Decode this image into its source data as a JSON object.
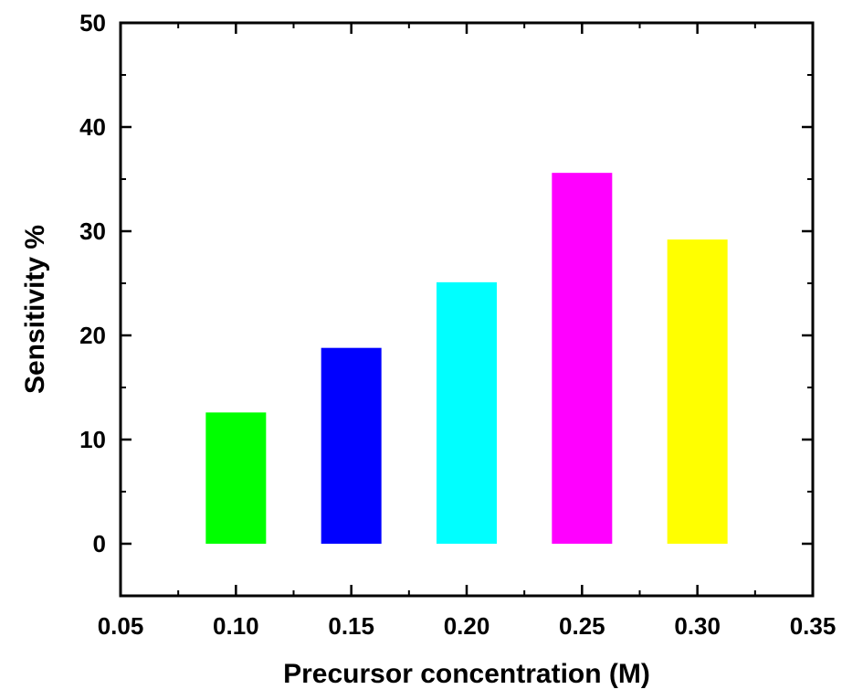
{
  "chart_data": {
    "type": "bar",
    "title": "",
    "xlabel": "Precursor concentration (M)",
    "ylabel": "Sensitivity %",
    "xlim": [
      0.05,
      0.35
    ],
    "ylim": [
      -5,
      50
    ],
    "x_ticks": [
      "0.05",
      "0.10",
      "0.15",
      "0.20",
      "0.25",
      "0.30",
      "0.35"
    ],
    "y_ticks": [
      "0",
      "10",
      "20",
      "30",
      "40",
      "50"
    ],
    "grid": false,
    "legend": "none",
    "bars": [
      {
        "x": 0.1,
        "value": 12.6,
        "color": "#00ff00"
      },
      {
        "x": 0.15,
        "value": 18.8,
        "color": "#0000ff"
      },
      {
        "x": 0.2,
        "value": 25.1,
        "color": "#00ffff"
      },
      {
        "x": 0.25,
        "value": 35.6,
        "color": "#ff00ff"
      },
      {
        "x": 0.3,
        "value": 29.2,
        "color": "#ffff00"
      }
    ]
  }
}
